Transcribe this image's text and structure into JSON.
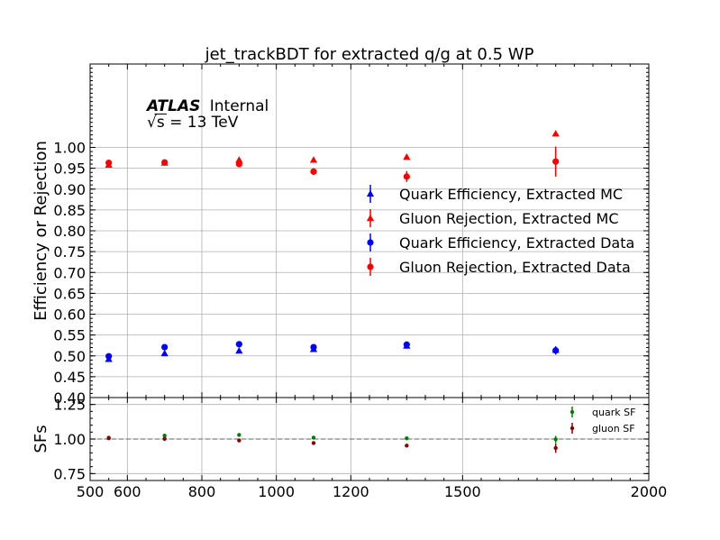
{
  "chart_data": [
    {
      "type": "scatter",
      "title": "jet_trackBDT for extracted q/g at 0.5 WP",
      "ylabel": "Efficiency or Rejection",
      "xlim": [
        500,
        2000
      ],
      "ylim": [
        0.4,
        1.2
      ],
      "yticks": [
        "0.40",
        "0.45",
        "0.50",
        "0.55",
        "0.60",
        "0.65",
        "0.70",
        "0.75",
        "0.80",
        "0.85",
        "0.90",
        "0.95",
        "1.00"
      ],
      "grid": true,
      "legend_position": "center-right",
      "annotation": {
        "experiment": "ATLAS",
        "status": "Internal",
        "energy_prefix": "√s = ",
        "energy": "13 TeV"
      },
      "series": [
        {
          "name": "Quark Efficiency, Extracted MC",
          "marker": "triangle",
          "color": "#0000ff",
          "x": [
            550,
            700,
            900,
            1100,
            1350,
            1750
          ],
          "y": [
            0.492,
            0.506,
            0.512,
            0.516,
            0.524,
            0.514
          ],
          "yerr": [
            0.004,
            0.003,
            0.003,
            0.004,
            0.005,
            0.006
          ]
        },
        {
          "name": "Gluon Rejection, Extracted MC",
          "marker": "triangle",
          "color": "#ff0000",
          "x": [
            550,
            700,
            900,
            1100,
            1350,
            1750
          ],
          "y": [
            0.958,
            0.963,
            0.97,
            0.97,
            0.977,
            1.033
          ],
          "yerr": [
            0.003,
            0.003,
            0.003,
            0.004,
            0.005,
            0.006
          ]
        },
        {
          "name": "Quark Efficiency, Extracted Data",
          "marker": "circle",
          "color": "#0000ff",
          "x": [
            550,
            700,
            900,
            1100,
            1350,
            1750
          ],
          "y": [
            0.499,
            0.521,
            0.528,
            0.521,
            0.527,
            0.513
          ],
          "yerr": [
            0.005,
            0.004,
            0.004,
            0.005,
            0.007,
            0.01
          ]
        },
        {
          "name": "Gluon Rejection, Extracted Data",
          "marker": "circle",
          "color": "#ff0000",
          "x": [
            550,
            700,
            900,
            1100,
            1350,
            1750
          ],
          "y": [
            0.963,
            0.964,
            0.96,
            0.942,
            0.93,
            0.966
          ],
          "yerr": [
            0.006,
            0.005,
            0.007,
            0.008,
            0.013,
            0.036
          ]
        }
      ]
    },
    {
      "type": "scatter",
      "ylabel": "SFs",
      "xlim": [
        500,
        2000
      ],
      "ylim": [
        0.7,
        1.3
      ],
      "xticks": [
        "500",
        "600",
        "800",
        "1000",
        "1200",
        "1500",
        "2000"
      ],
      "yticks": [
        "0.75",
        "1.00",
        "1.25"
      ],
      "reference_line": 1.0,
      "grid": true,
      "legend_position": "top-right",
      "series": [
        {
          "name": "quark SF",
          "marker": "circle",
          "color": "#008000",
          "x": [
            550,
            700,
            900,
            1100,
            1350,
            1750
          ],
          "y": [
            1.01,
            1.025,
            1.03,
            1.01,
            1.005,
            0.998
          ],
          "yerr": [
            0.008,
            0.008,
            0.008,
            0.01,
            0.012,
            0.025
          ]
        },
        {
          "name": "gluon SF",
          "marker": "circle",
          "color": "#8b0000",
          "x": [
            550,
            700,
            900,
            1100,
            1350,
            1750
          ],
          "y": [
            1.005,
            1.001,
            0.99,
            0.971,
            0.952,
            0.935
          ],
          "yerr": [
            0.006,
            0.006,
            0.007,
            0.008,
            0.012,
            0.035
          ]
        }
      ]
    }
  ]
}
